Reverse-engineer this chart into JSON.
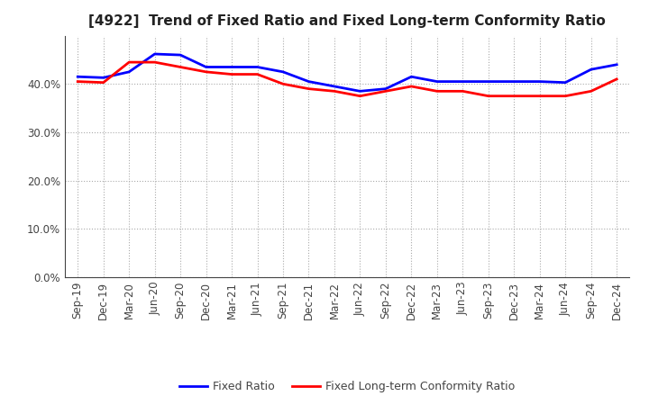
{
  "title": "[4922]  Trend of Fixed Ratio and Fixed Long-term Conformity Ratio",
  "x_labels": [
    "Sep-19",
    "Dec-19",
    "Mar-20",
    "Jun-20",
    "Sep-20",
    "Dec-20",
    "Mar-21",
    "Jun-21",
    "Sep-21",
    "Dec-21",
    "Mar-22",
    "Jun-22",
    "Sep-22",
    "Dec-22",
    "Mar-23",
    "Jun-23",
    "Sep-23",
    "Dec-23",
    "Mar-24",
    "Jun-24",
    "Sep-24",
    "Dec-24"
  ],
  "fixed_ratio": [
    41.5,
    41.3,
    42.5,
    46.2,
    46.0,
    43.5,
    43.5,
    43.5,
    42.5,
    40.5,
    39.5,
    38.5,
    39.0,
    41.5,
    40.5,
    40.5,
    40.5,
    40.5,
    40.5,
    40.3,
    43.0,
    44.0
  ],
  "fixed_lt_ratio": [
    40.5,
    40.3,
    44.5,
    44.5,
    43.5,
    42.5,
    42.0,
    42.0,
    40.0,
    39.0,
    38.5,
    37.5,
    38.5,
    39.5,
    38.5,
    38.5,
    37.5,
    37.5,
    37.5,
    37.5,
    38.5,
    41.0
  ],
  "fixed_ratio_color": "#0000FF",
  "fixed_lt_ratio_color": "#FF0000",
  "ylim": [
    0,
    50
  ],
  "yticks": [
    0,
    10,
    20,
    30,
    40
  ],
  "background_color": "#FFFFFF",
  "plot_bg_color": "#FFFFFF",
  "grid_color": "#AAAAAA",
  "legend_fixed_ratio": "Fixed Ratio",
  "legend_fixed_lt": "Fixed Long-term Conformity Ratio",
  "line_width": 2.0,
  "title_fontsize": 11,
  "tick_fontsize": 8.5,
  "legend_fontsize": 9
}
